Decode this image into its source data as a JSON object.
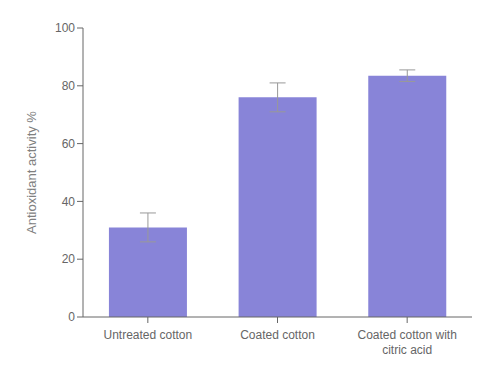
{
  "chart_data": {
    "type": "bar",
    "categories": [
      "Untreated cotton",
      "Coated cotton",
      "Coated cotton with citric acid"
    ],
    "values": [
      31.0,
      76.0,
      83.5
    ],
    "errors": [
      5.0,
      5.0,
      2.0
    ],
    "ylabel": "Antioxidant activity %",
    "ylim": [
      0,
      100
    ],
    "yticks": [
      0,
      20,
      40,
      60,
      80,
      100
    ],
    "grid": false
  }
}
